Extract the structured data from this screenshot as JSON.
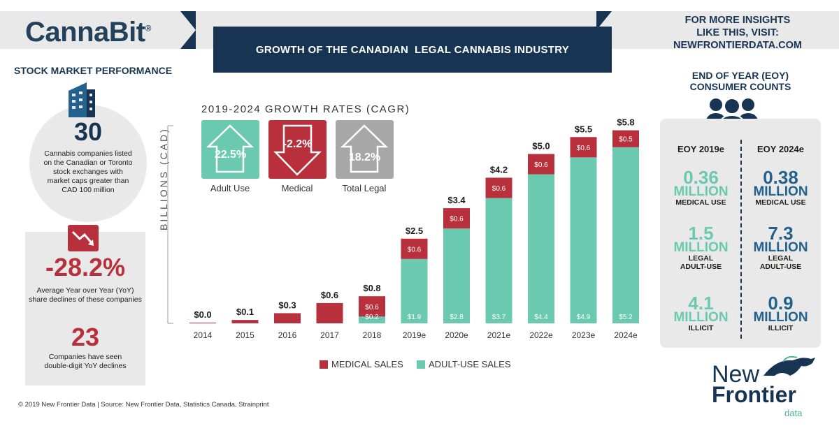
{
  "header": {
    "logo": "CannaBit",
    "logo_mark": "®",
    "title": "GROWTH OF THE CANADIAN  LEGAL CANNABIS INDUSTRY",
    "insights_line1": "FOR MORE INSIGHTS",
    "insights_line2": "LIKE THIS, VISIT:",
    "insights_line3": "NEWFRONTIERDATA.COM"
  },
  "stock": {
    "heading": "STOCK MARKET PERFORMANCE",
    "companies_count": "30",
    "companies_text_1": "Cannabis companies listed",
    "companies_text_2": "on the Canadian or Toronto",
    "companies_text_3": "stock exchanges with",
    "companies_text_4": "market caps greater than",
    "companies_text_5": "CAD 100 million",
    "decline_pct": "-28.2%",
    "decline_text_1": "Average Year over Year (YoY)",
    "decline_text_2": "share declines of these companies",
    "double_digit_count": "23",
    "double_digit_text_1": "Companies have seen",
    "double_digit_text_2": "double-digit YoY declines"
  },
  "cagr": {
    "title": "2019-2024 GROWTH RATES (CAGR)",
    "items": [
      {
        "value": "22.5%",
        "label": "Adult Use",
        "color": "#6bc9b0"
      },
      {
        "value": "-2.2%",
        "label": "Medical",
        "color": "#b9303d"
      },
      {
        "value": "18.2%",
        "label": "Total Legal",
        "color": "#a7a7a7"
      }
    ]
  },
  "consumers": {
    "heading_1": "END OF YEAR (EOY)",
    "heading_2": "CONSUMER COUNTS",
    "col_2019": "EOY 2019e",
    "col_2024": "EOY 2024e",
    "million": "MILLION",
    "rows": [
      {
        "v2019": "0.36",
        "v2024": "0.38",
        "label_1": "MEDICAL USE",
        "label_2": ""
      },
      {
        "v2019": "1.5",
        "v2024": "7.3",
        "label_1": "LEGAL",
        "label_2": "ADULT-USE"
      },
      {
        "v2019": "4.1",
        "v2024": "0.9",
        "label_1": "ILLICIT",
        "label_2": ""
      }
    ]
  },
  "footer": "© 2019  New Frontier Data | Source: New Frontier Data, Statistics Canada, Strainprint",
  "brand": {
    "line1": "New",
    "line2": "Frontier",
    "line3": "data"
  },
  "chart_data": {
    "type": "bar",
    "stacked": true,
    "ylabel": "BILLIONS (CAD)",
    "ylim": [
      0,
      6
    ],
    "categories": [
      "2014",
      "2015",
      "2016",
      "2017",
      "2018",
      "2019e",
      "2020e",
      "2021e",
      "2022e",
      "2023e",
      "2024e"
    ],
    "totals": [
      "$0.0",
      "$0.1",
      "$0.3",
      "$0.6",
      "$0.8",
      "$2.5",
      "$3.4",
      "$4.2",
      "$5.0",
      "$5.5",
      "$5.8"
    ],
    "series": [
      {
        "name": "ADULT-USE SALES",
        "color": "#6bc9b0",
        "values": [
          0,
          0,
          0,
          0,
          0.2,
          1.9,
          2.8,
          3.7,
          4.4,
          4.9,
          5.2
        ],
        "labels": [
          "",
          "",
          "",
          "",
          "$0.2",
          "$1.9",
          "$2.8",
          "$3.7",
          "$4.4",
          "$4.9",
          "$5.2"
        ]
      },
      {
        "name": "MEDICAL SALES",
        "color": "#b9303d",
        "values": [
          0,
          0.1,
          0.3,
          0.6,
          0.6,
          0.6,
          0.6,
          0.6,
          0.6,
          0.6,
          0.5
        ],
        "labels": [
          "",
          "",
          "",
          "",
          "$0.6",
          "$0.6",
          "$0.6",
          "$0.6",
          "$0.6",
          "$0.6",
          "$0.5"
        ]
      }
    ],
    "legend": [
      {
        "name": "MEDICAL SALES",
        "color": "#b9303d"
      },
      {
        "name": "ADULT-USE SALES",
        "color": "#6bc9b0"
      }
    ]
  }
}
